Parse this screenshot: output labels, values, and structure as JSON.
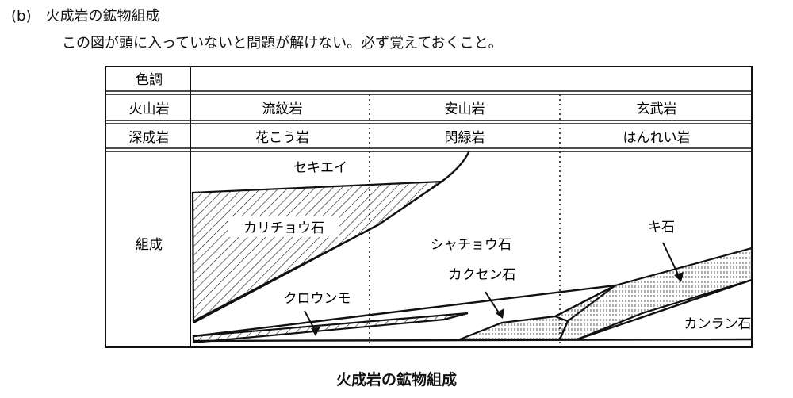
{
  "header": {
    "section": "(b)　火成岩の鉱物組成",
    "note": "この図が頭に入っていないと問題が解けない。必ず覚えておくこと。"
  },
  "table": {
    "row_labels": {
      "color": "色調",
      "volcanic": "火山岩",
      "plutonic": "深成岩",
      "composition": "組成"
    },
    "volcanic": [
      "流紋岩",
      "安山岩",
      "玄武岩"
    ],
    "plutonic": [
      "花こう岩",
      "閃緑岩",
      "はんれい岩"
    ]
  },
  "minerals": {
    "quartz": "セキエイ",
    "k_feldspar": "カリチョウ石",
    "plagioclase": "シャチョウ石",
    "biotite": "クロウンモ",
    "amphibole": "カクセン石",
    "pyroxene": "キ石",
    "olivine": "カンラン石"
  },
  "caption": "火成岩の鉱物組成"
}
